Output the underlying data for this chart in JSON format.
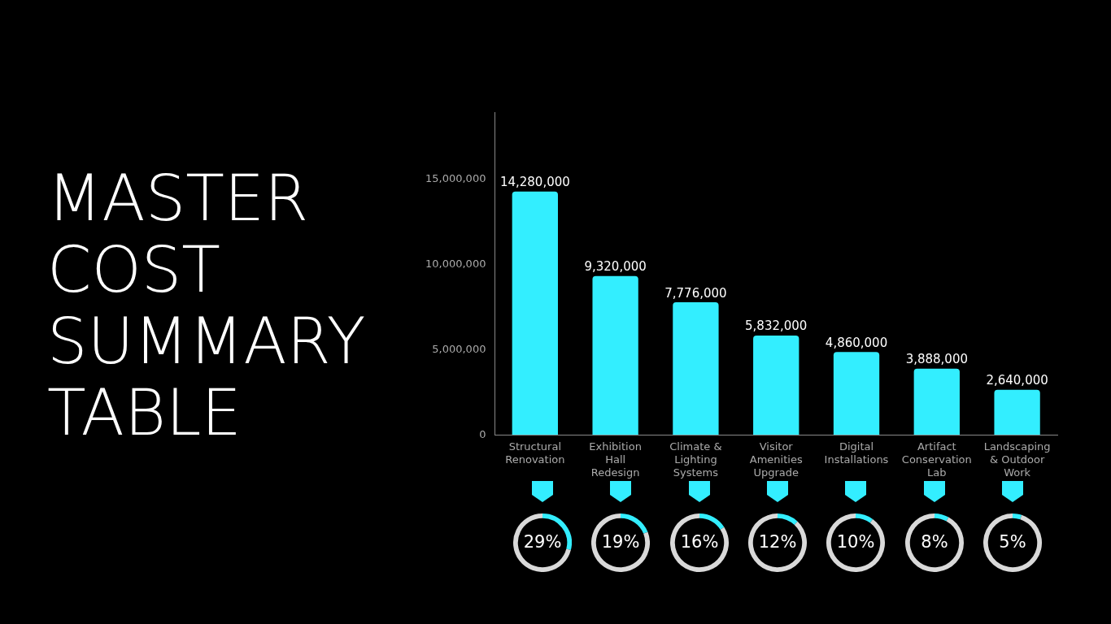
{
  "chart_data": [
    {
      "type": "bar",
      "title": "MASTER COST SUMMARY TABLE",
      "categories": [
        "Structural Renovation",
        "Exhibition Hall Redesign",
        "Climate & Lighting Systems",
        "Visitor Amenities Upgrade",
        "Digital Installations",
        "Artifact Conservation Lab",
        "Landscaping & Outdoor Work"
      ],
      "values": [
        14280000,
        9320000,
        7776000,
        5832000,
        4860000,
        3888000,
        2640000
      ],
      "color": "#33eeff",
      "ylim": [
        0,
        18900000
      ],
      "yticks": [
        0,
        {
          "value": 5000000,
          "label": "5,000,000"
        },
        {
          "value": 10000000,
          "label": "10,000,000"
        },
        {
          "value": 15000000,
          "label": "15,000,000"
        }
      ],
      "grid": false,
      "value_labels": [
        "14,280,000",
        "9,320,000",
        "7,776,000",
        "5,832,000",
        "4,860,000",
        "3,888,000",
        "2,640,000"
      ]
    },
    {
      "type": "donut",
      "categories": [
        null,
        null
      ],
      "values": [
        29,
        71
      ],
      "colors": [
        "#33eeff",
        "#d9d9d9"
      ],
      "annotations": [
        "29%"
      ]
    },
    {
      "type": "donut",
      "categories": [
        null,
        null
      ],
      "values": [
        19,
        81
      ],
      "colors": [
        "#33eeff",
        "#d9d9d9"
      ],
      "annotations": [
        "19%"
      ]
    },
    {
      "type": "donut",
      "categories": [
        null,
        null
      ],
      "values": [
        16,
        84
      ],
      "colors": [
        "#33eeff",
        "#d9d9d9"
      ],
      "annotations": [
        "16%"
      ]
    },
    {
      "type": "donut",
      "categories": [
        null,
        null
      ],
      "values": [
        12,
        88
      ],
      "colors": [
        "#33eeff",
        "#d9d9d9"
      ],
      "annotations": [
        "12%"
      ]
    },
    {
      "type": "donut",
      "categories": [
        null,
        null
      ],
      "values": [
        10,
        90
      ],
      "colors": [
        "#33eeff",
        "#d9d9d9"
      ],
      "annotations": [
        "10%"
      ]
    },
    {
      "type": "donut",
      "categories": [
        null,
        null
      ],
      "values": [
        8,
        92
      ],
      "colors": [
        "#33eeff",
        "#d9d9d9"
      ],
      "annotations": [
        "8%"
      ]
    },
    {
      "type": "donut",
      "categories": [
        null,
        null
      ],
      "values": [
        5,
        95
      ],
      "colors": [
        "#33eeff",
        "#d9d9d9"
      ],
      "annotations": [
        "5%"
      ]
    }
  ]
}
